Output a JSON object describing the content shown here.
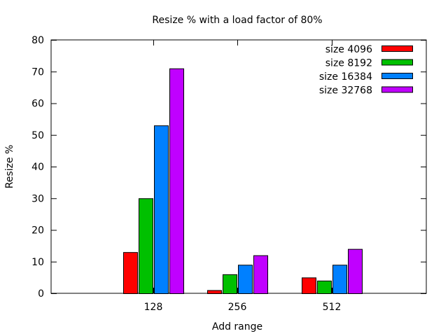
{
  "chart_data": {
    "type": "bar",
    "title": "Resize % with a load factor of 80%",
    "xlabel": "Add range",
    "ylabel": "Resize %",
    "categories": [
      "128",
      "256",
      "512"
    ],
    "ylim": [
      0,
      80
    ],
    "yticks": [
      0,
      10,
      20,
      30,
      40,
      50,
      60,
      70,
      80
    ],
    "grid": false,
    "legend_position": "top-right",
    "series": [
      {
        "name": "size 4096",
        "color": "#ff0000",
        "values": [
          13,
          1,
          5
        ]
      },
      {
        "name": "size 8192",
        "color": "#00c000",
        "values": [
          30,
          6,
          4
        ]
      },
      {
        "name": "size 16384",
        "color": "#0080ff",
        "values": [
          53,
          9,
          9
        ]
      },
      {
        "name": "size 32768",
        "color": "#c000ff",
        "values": [
          71,
          12,
          14
        ]
      }
    ]
  }
}
